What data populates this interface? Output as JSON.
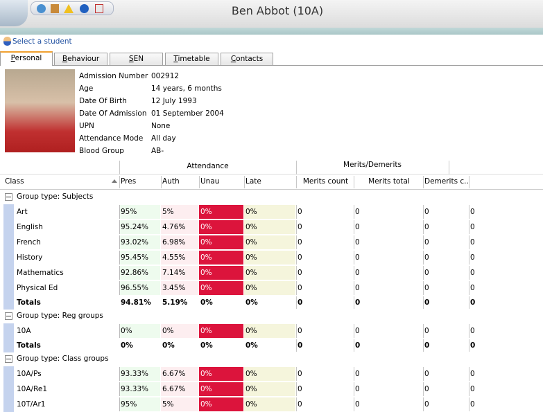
{
  "window": {
    "title": "Ben Abbot (10A)",
    "select_student": "Select a student"
  },
  "tabs": [
    "Personal",
    "Behaviour",
    "SEN",
    "Timetable",
    "Contacts"
  ],
  "details": [
    {
      "label": "Admission Number",
      "value": "002912"
    },
    {
      "label": "Age",
      "value": "14 years, 6 months"
    },
    {
      "label": "Date Of Birth",
      "value": "12 July 1993"
    },
    {
      "label": "Date Of Admission",
      "value": "01 September 2004"
    },
    {
      "label": "UPN",
      "value": "None"
    },
    {
      "label": "Attendance Mode",
      "value": "All day"
    },
    {
      "label": "Blood Group",
      "value": "AB-"
    }
  ],
  "table": {
    "group_headers": [
      "Attendance",
      "Merits/Demerits"
    ],
    "columns": [
      "Class",
      "Pres",
      "Auth",
      "Unau",
      "Late",
      "Merits count",
      "Merits total",
      "Demerits c..."
    ],
    "groups": [
      {
        "title": "Group type: Subjects",
        "rows": [
          [
            "Art",
            "95%",
            "5%",
            "0%",
            "0%",
            "0",
            "0",
            "0",
            "0"
          ],
          [
            "English",
            "95.24%",
            "4.76%",
            "0%",
            "0%",
            "0",
            "0",
            "0",
            "0"
          ],
          [
            "French",
            "93.02%",
            "6.98%",
            "0%",
            "0%",
            "0",
            "0",
            "0",
            "0"
          ],
          [
            "History",
            "95.45%",
            "4.55%",
            "0%",
            "0%",
            "0",
            "0",
            "0",
            "0"
          ],
          [
            "Mathematics",
            "92.86%",
            "7.14%",
            "0%",
            "0%",
            "0",
            "0",
            "0",
            "0"
          ],
          [
            "Physical Ed",
            "96.55%",
            "3.45%",
            "0%",
            "0%",
            "0",
            "0",
            "0",
            "0"
          ]
        ],
        "totals": [
          "Totals",
          "94.81%",
          "5.19%",
          "0%",
          "0%",
          "0",
          "0",
          "0",
          "0"
        ]
      },
      {
        "title": "Group type: Reg groups",
        "rows": [
          [
            "10A",
            "0%",
            "0%",
            "0%",
            "0%",
            "0",
            "0",
            "0",
            "0"
          ]
        ],
        "totals": [
          "Totals",
          "0%",
          "0%",
          "0%",
          "0%",
          "0",
          "0",
          "0",
          "0"
        ]
      },
      {
        "title": "Group type: Class groups",
        "rows": [
          [
            "10A/Ps",
            "93.33%",
            "6.67%",
            "0%",
            "0%",
            "0",
            "0",
            "0",
            "0"
          ],
          [
            "10A/Re1",
            "93.33%",
            "6.67%",
            "0%",
            "0%",
            "0",
            "0",
            "0",
            "0"
          ],
          [
            "10T/Ar1",
            "95%",
            "5%",
            "0%",
            "0%",
            "0",
            "0",
            "0",
            "0"
          ]
        ]
      }
    ]
  }
}
